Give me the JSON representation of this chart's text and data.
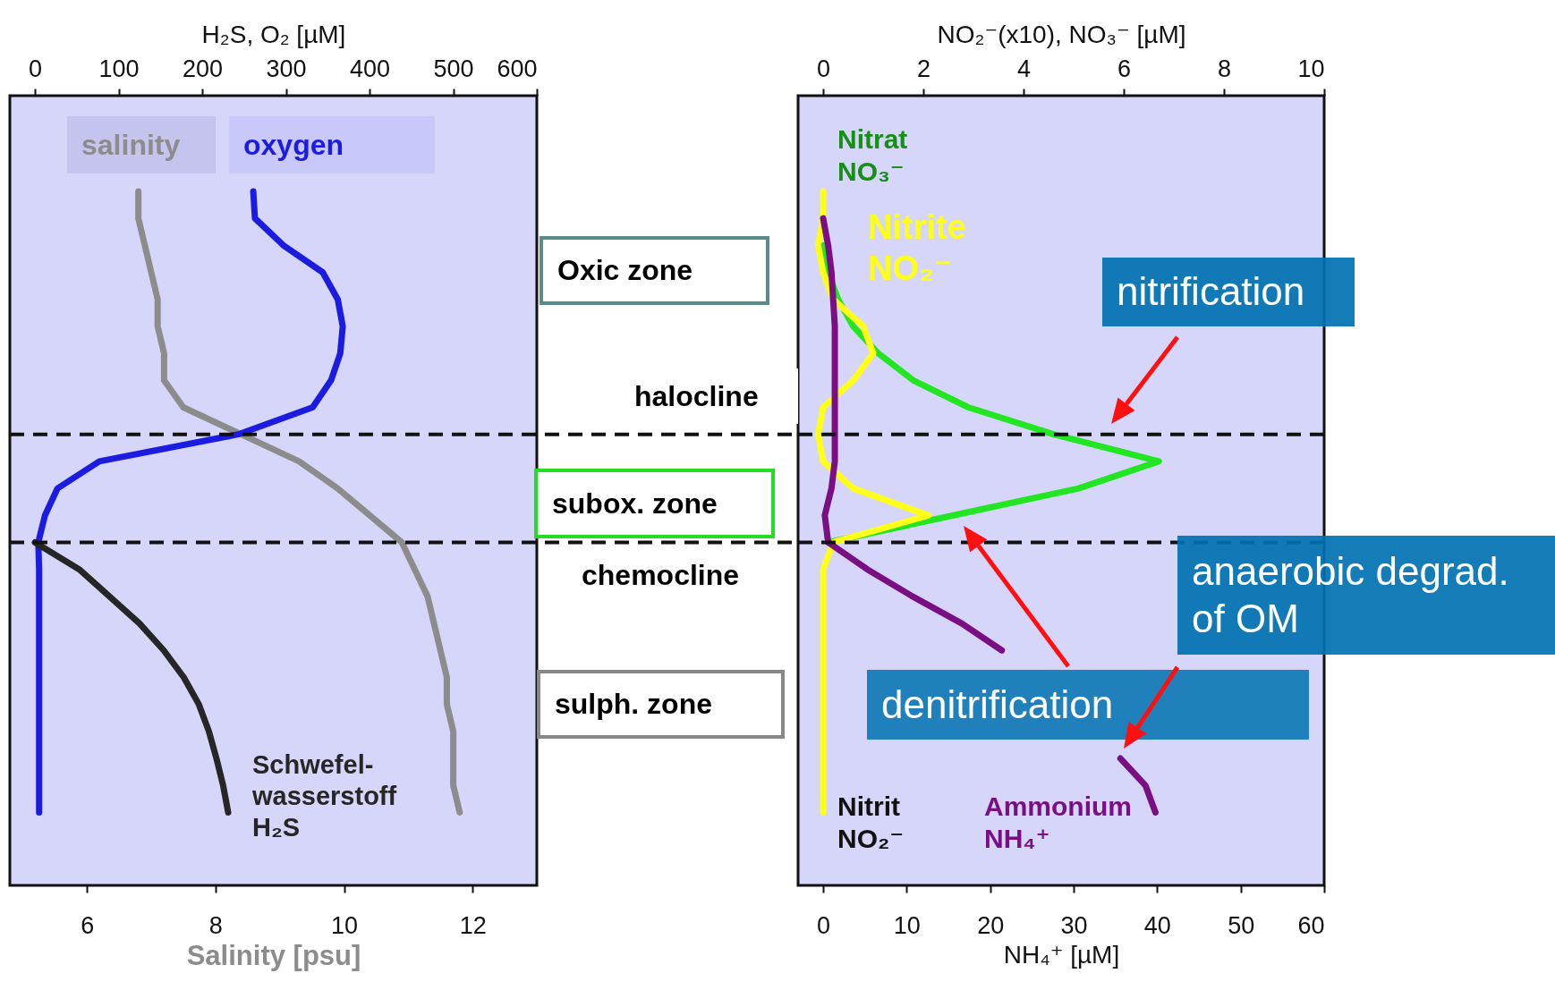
{
  "chart_data": [
    {
      "type": "line",
      "orientation": "horizontal",
      "categories": [
        null,
        null,
        null,
        null,
        null,
        null,
        null,
        null,
        null,
        null,
        null,
        null,
        null,
        null,
        null,
        null,
        null,
        null,
        null,
        null,
        null,
        null,
        null,
        null
      ],
      "xlabel": "Salinity [psu]",
      "xlim": [
        4.8,
        13
      ],
      "xticks": [
        6,
        8,
        10,
        12
      ],
      "x2label": "H₂S, O₂ [µM]",
      "x2lim": [
        -30,
        600
      ],
      "x2ticks": [
        0,
        100,
        200,
        300,
        400,
        500,
        600
      ],
      "legend": "top left",
      "series": [
        {
          "name": "salinity",
          "color": "#8c8c8c",
          "values": [
            6.8,
            6.8,
            6.9,
            7.0,
            7.1,
            7.1,
            7.2,
            7.2,
            7.5,
            8.4,
            9.3,
            9.9,
            10.4,
            10.9,
            11.1,
            11.3,
            11.4,
            11.5,
            11.6,
            11.6,
            11.7,
            11.7,
            11.7,
            11.8
          ]
        },
        {
          "name": "oxygen",
          "color": "#1c1ce0",
          "axis": "x2",
          "values": [
            261,
            263,
            297,
            344,
            362,
            368,
            365,
            354,
            332,
            243,
            77,
            27,
            12,
            4,
            5,
            5,
            5,
            5,
            5,
            5,
            5,
            5,
            5,
            5
          ]
        },
        {
          "name": "Schwefel-\nwasserstoff\nH₂S",
          "color": "#262626",
          "axis": "x2",
          "values": [
            null,
            null,
            null,
            null,
            null,
            null,
            null,
            null,
            null,
            null,
            null,
            null,
            null,
            0,
            53,
            89,
            125,
            154,
            178,
            196,
            208,
            217,
            225,
            231
          ]
        }
      ],
      "annotations": [
        "Oxic zone",
        "halocline",
        "subox. zone",
        "chemocline",
        "sulph. zone"
      ]
    },
    {
      "type": "line",
      "orientation": "horizontal",
      "categories": [
        null,
        null,
        null,
        null,
        null,
        null,
        null,
        null,
        null,
        null,
        null,
        null,
        null,
        null,
        null,
        null,
        null,
        null,
        null,
        null,
        null,
        null,
        null,
        null
      ],
      "xlabel": "NH₄⁺ [µM]",
      "xlim": [
        -3,
        60
      ],
      "xticks": [
        0,
        10,
        20,
        30,
        40,
        50,
        60
      ],
      "x2label": "NO₂⁻(x10), NO₃⁻ [µM]",
      "x2lim": [
        -0.5,
        10
      ],
      "x2ticks": [
        0,
        2,
        4,
        6,
        8,
        10
      ],
      "series": [
        {
          "name": "Nitrat\nNO₃⁻",
          "color": "#22e622",
          "axis": "x2",
          "values": [
            null,
            null,
            0,
            0.1,
            0.3,
            0.6,
            1.1,
            1.8,
            2.9,
            4.6,
            6.7,
            5.1,
            2.6,
            0.1,
            null,
            null,
            null,
            null,
            null,
            null,
            null,
            null,
            null,
            null
          ]
        },
        {
          "name": "Nitrite\nNO₂⁻",
          "color": "#ffff1a",
          "axis": "x2",
          "values": [
            0,
            0,
            -0.1,
            0,
            0.2,
            0.8,
            1.0,
            0.6,
            0,
            -0.1,
            0,
            0.6,
            2.1,
            0.2,
            0,
            0,
            0,
            0,
            0,
            0,
            0,
            0,
            0,
            0
          ]
        },
        {
          "name": "Ammonium\nNH₄⁺",
          "color": "#7a0f84",
          "values": [
            null,
            0,
            0.6,
            1,
            1.2,
            1.4,
            1.4,
            1.4,
            1.4,
            1.4,
            1.4,
            1,
            0.2,
            0.6,
            5.3,
            10.7,
            16.6,
            21.4,
            null,
            null,
            null,
            35.6,
            38.6,
            39.8
          ]
        }
      ],
      "annotations": [
        "Nitrit\nNO₂⁻",
        "nitrification",
        "anaerobic degrad.\nof OM",
        "denitrification"
      ]
    }
  ]
}
